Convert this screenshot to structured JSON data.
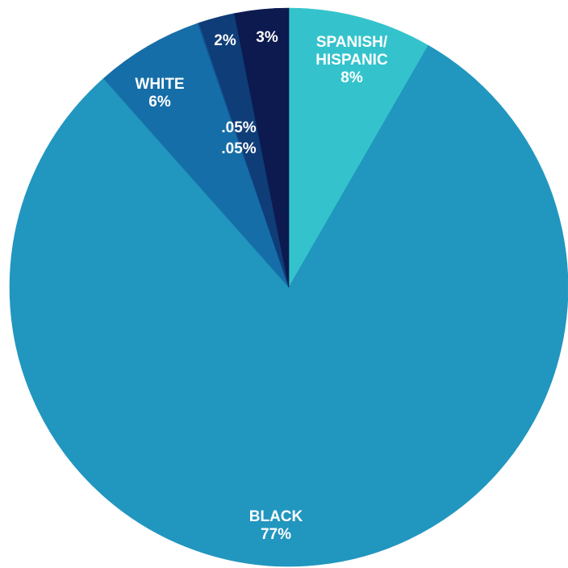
{
  "chart_data": {
    "type": "pie",
    "title": "",
    "start_angle_deg": 0,
    "direction": "clockwise",
    "slices": [
      {
        "label_lines": [
          "SPANISH/",
          "HISPANIC",
          "8%"
        ],
        "value": 8,
        "color": "#34c3cc"
      },
      {
        "label_lines": [
          "BLACK",
          "77%"
        ],
        "value": 77,
        "color": "#2196bf"
      },
      {
        "label_lines": [
          "WHITE",
          "6%"
        ],
        "value": 6,
        "color": "#166ea8"
      },
      {
        "label_lines": [
          ".05%"
        ],
        "value": 0.05,
        "color": "#145d99"
      },
      {
        "label_lines": [
          ".05%"
        ],
        "value": 0.05,
        "color": "#124f8d"
      },
      {
        "label_lines": [
          "2%"
        ],
        "value": 2,
        "color": "#0f3d78"
      },
      {
        "label_lines": [
          "3%"
        ],
        "value": 3,
        "color": "#0c1a4f"
      }
    ]
  }
}
